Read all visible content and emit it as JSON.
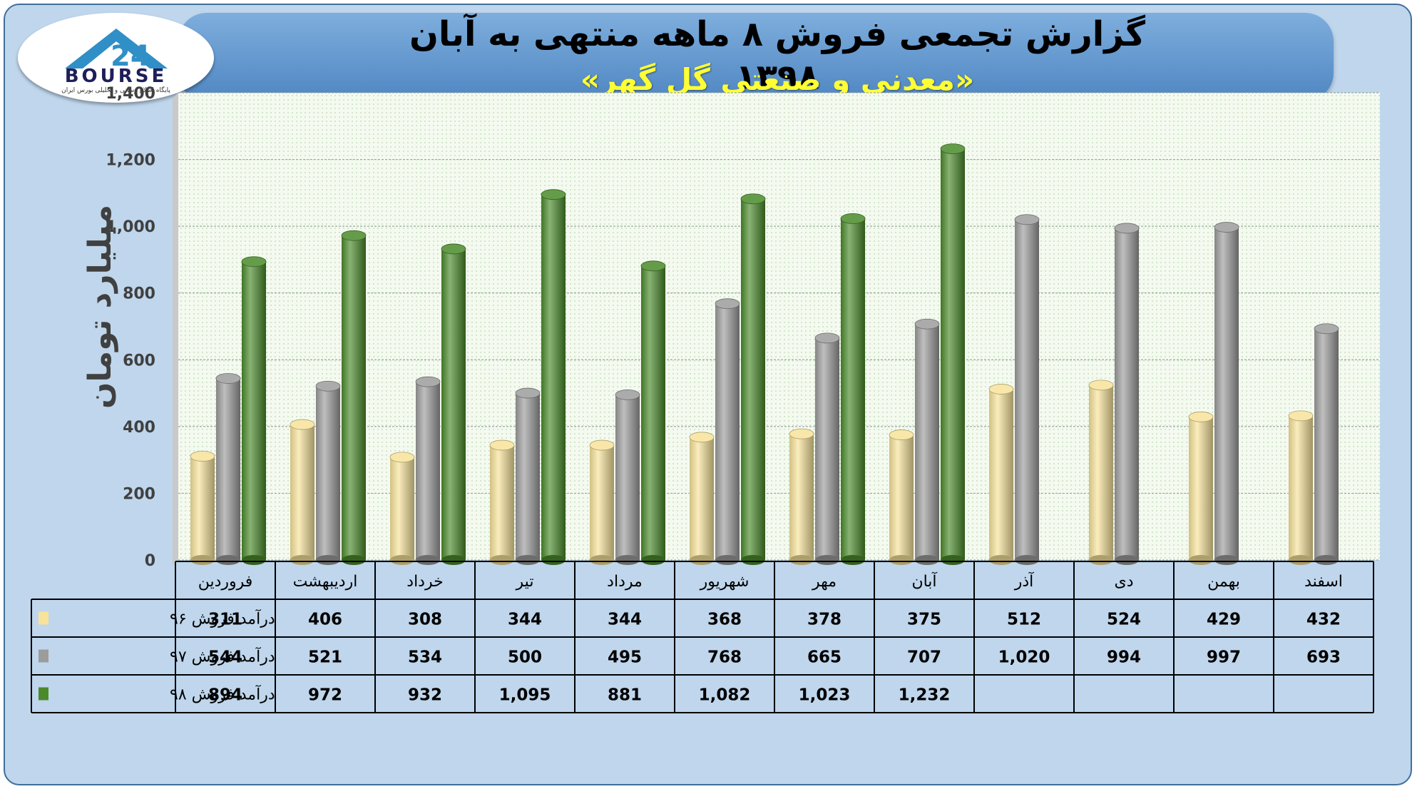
{
  "header": {
    "title": "گزارش تجمعی فروش ۸ ماهه منتهی به آبان ۱۳۹۸",
    "subtitle": "«معدنی و صنعتی گل گهر»"
  },
  "logo": {
    "word": "BOURSE",
    "tagline": "پایگاه اطلاع رسانی و تحلیلی بورس ایران"
  },
  "colors": {
    "frame_bg": "#bfd6ec",
    "banner": "#5b92cc",
    "series96": "#f7e39a",
    "series97": "#9c9c9c",
    "series98": "#4a8a2a",
    "plot_bg": "#f3f9ee"
  },
  "chart_data": {
    "type": "bar",
    "ylabel": "میلیارد تومان",
    "ylim": [
      0,
      1400
    ],
    "yticks": [
      0,
      200,
      400,
      600,
      800,
      1000,
      1200,
      1400
    ],
    "ytick_labels": [
      "0",
      "200",
      "400",
      "600",
      "800",
      "1,000",
      "1,200",
      "1,400"
    ],
    "grid": true,
    "categories": [
      "فروردین",
      "اردیبهشت",
      "خرداد",
      "تیر",
      "مرداد",
      "شهریور",
      "مهر",
      "آبان",
      "آذر",
      "دی",
      "بهمن",
      "اسفند"
    ],
    "series": [
      {
        "name": "درآمد فروش ۹۶",
        "color": "#f7e39a",
        "values": [
          311,
          406,
          308,
          344,
          344,
          368,
          378,
          375,
          512,
          524,
          429,
          432
        ],
        "labels": [
          "311",
          "406",
          "308",
          "344",
          "344",
          "368",
          "378",
          "375",
          "512",
          "524",
          "429",
          "432"
        ]
      },
      {
        "name": "درآمد فروش ۹۷",
        "color": "#9c9c9c",
        "values": [
          544,
          521,
          534,
          500,
          495,
          768,
          665,
          707,
          1020,
          994,
          997,
          693
        ],
        "labels": [
          "544",
          "521",
          "534",
          "500",
          "495",
          "768",
          "665",
          "707",
          "1,020",
          "994",
          "997",
          "693"
        ]
      },
      {
        "name": "درآمد فروش ۹۸",
        "color": "#4a8a2a",
        "values": [
          894,
          972,
          932,
          1095,
          881,
          1082,
          1023,
          1232,
          null,
          null,
          null,
          null
        ],
        "labels": [
          "894",
          "972",
          "932",
          "1,095",
          "881",
          "1,082",
          "1,023",
          "1,232",
          "",
          "",
          "",
          ""
        ]
      }
    ]
  }
}
